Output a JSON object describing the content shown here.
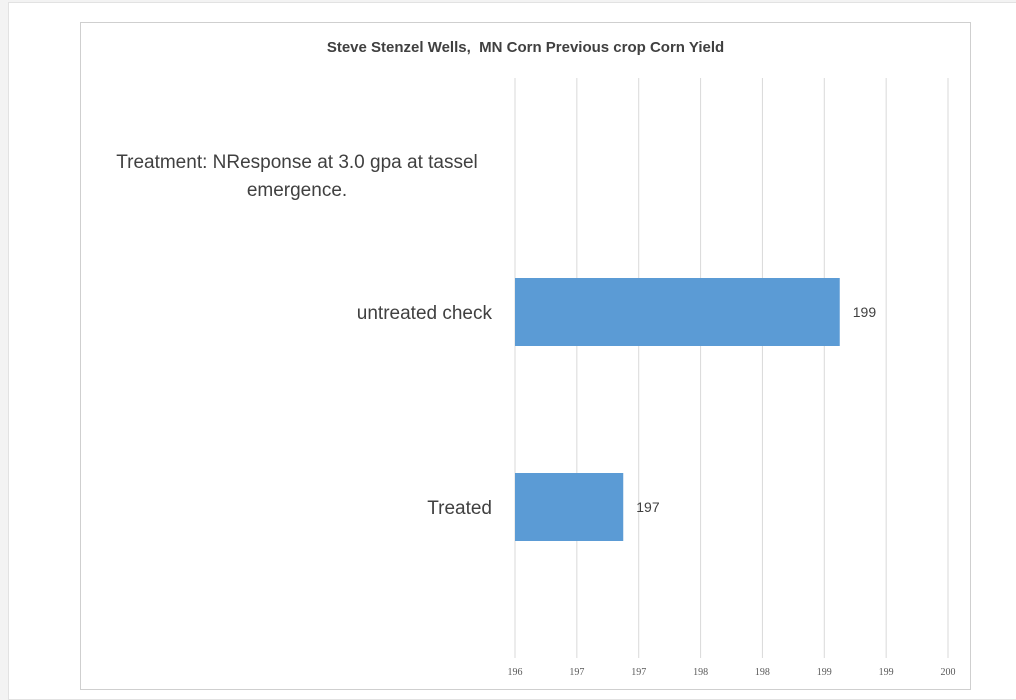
{
  "chart_data": {
    "type": "bar",
    "orientation": "horizontal",
    "title": "Steve Stenzel Wells,  MN Corn Previous crop Corn Yield",
    "annotation": "Treatment: NResponse at 3.0 gpa at tassel emergence.",
    "categories": [
      "untreated check",
      "Treated"
    ],
    "values": [
      199,
      197
    ],
    "data_labels": [
      "199",
      "197"
    ],
    "xlim": [
      196,
      200
    ],
    "x_tick_labels": [
      "196",
      "197",
      "197",
      "198",
      "198",
      "199",
      "199",
      "200"
    ],
    "xlabel": "",
    "ylabel": "",
    "grid": true,
    "legend": "none",
    "bar_color": "#5b9bd5",
    "gridline_color": "#d9d9d9"
  }
}
